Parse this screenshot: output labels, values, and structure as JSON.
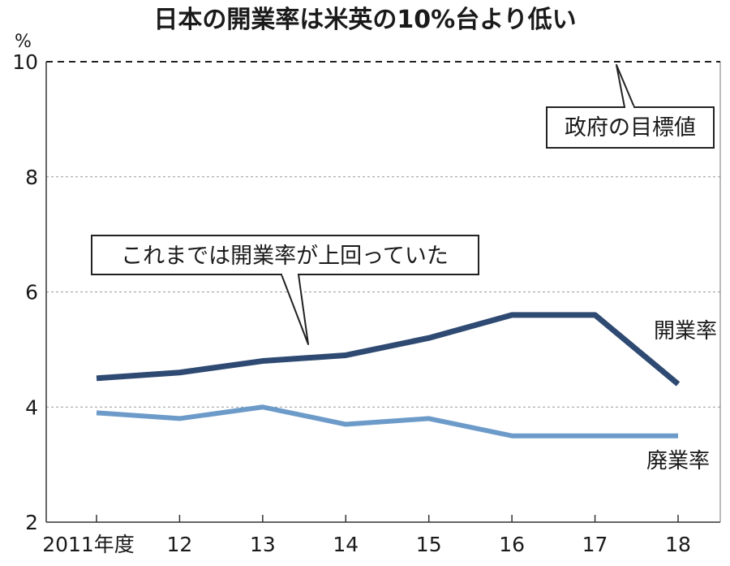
{
  "chart_data": {
    "type": "line",
    "title": "日本の開業率は米英の10%台より低い",
    "unit": "%",
    "categories": [
      "2011年度",
      "12",
      "13",
      "14",
      "15",
      "16",
      "17",
      "18"
    ],
    "ylim": [
      2,
      10
    ],
    "yticks": [
      "2",
      "4",
      "6",
      "8",
      "10"
    ],
    "grid": true,
    "series": [
      {
        "name": "開業率",
        "color": "#2e4a72",
        "values": [
          4.5,
          4.6,
          4.8,
          4.9,
          5.2,
          5.6,
          5.6,
          4.4
        ]
      },
      {
        "name": "廃業率",
        "color": "#6d9bc9",
        "values": [
          3.9,
          3.8,
          4.0,
          3.7,
          3.8,
          3.5,
          3.5,
          3.5
        ]
      }
    ],
    "reference_line": {
      "value": 10,
      "label": "政府の目標値"
    },
    "annotations": [
      {
        "text": "これまでは開業率が上回っていた"
      }
    ]
  }
}
